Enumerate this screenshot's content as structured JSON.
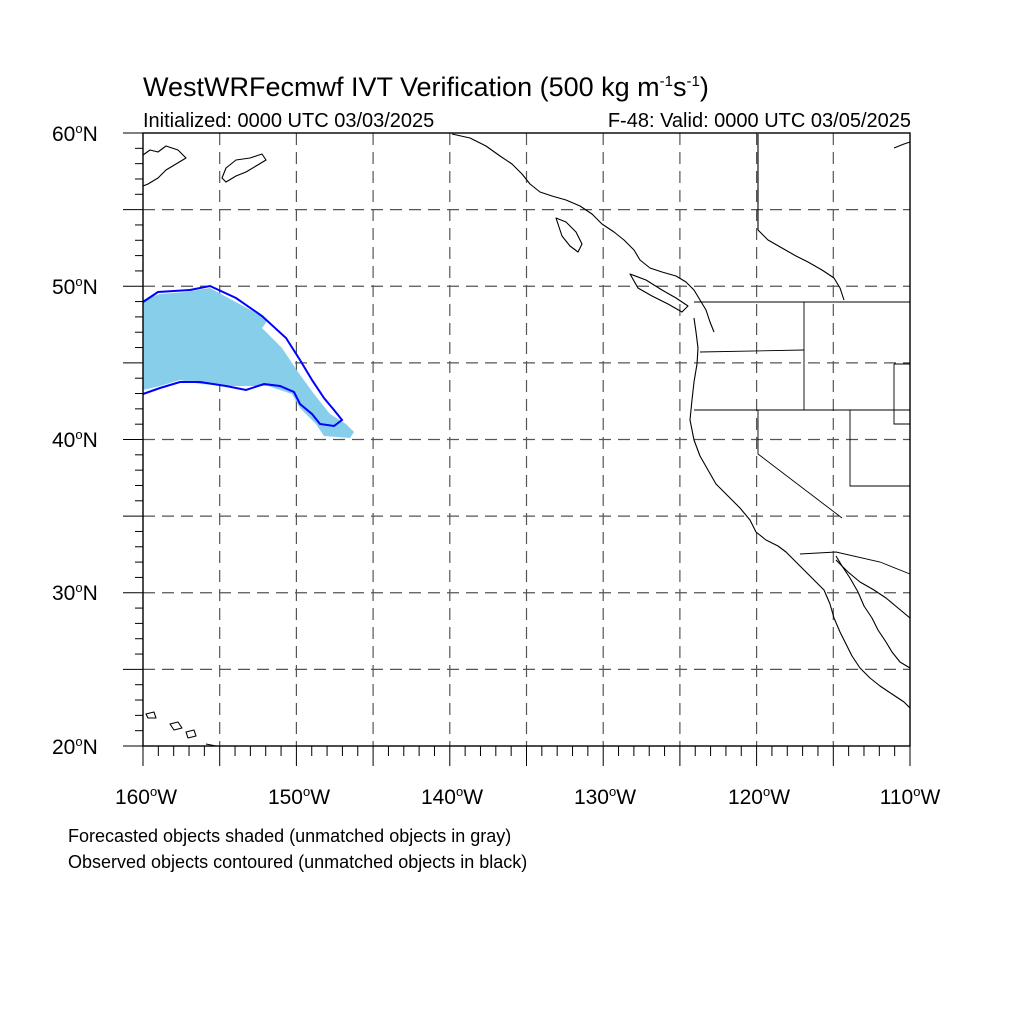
{
  "header": {
    "title_main": "WestWRFecmwf IVT Verification (500 kg m",
    "title_sup1": "-1",
    "title_mid": "s",
    "title_sup2": "-1",
    "title_end": ")",
    "initialized": "Initialized: 0000 UTC 03/03/2025",
    "valid": "F-48: Valid: 0000 UTC 03/05/2025"
  },
  "axes": {
    "lat_labels": [
      {
        "deg": "60",
        "sym": "o",
        "hem": "N"
      },
      {
        "deg": "50",
        "sym": "o",
        "hem": "N"
      },
      {
        "deg": "40",
        "sym": "o",
        "hem": "N"
      },
      {
        "deg": "30",
        "sym": "o",
        "hem": "N"
      },
      {
        "deg": "20",
        "sym": "o",
        "hem": "N"
      }
    ],
    "lon_labels": [
      {
        "deg": "160",
        "sym": "o",
        "hem": "W"
      },
      {
        "deg": "150",
        "sym": "o",
        "hem": "W"
      },
      {
        "deg": "140",
        "sym": "o",
        "hem": "W"
      },
      {
        "deg": "130",
        "sym": "o",
        "hem": "W"
      },
      {
        "deg": "120",
        "sym": "o",
        "hem": "W"
      },
      {
        "deg": "110",
        "sym": "o",
        "hem": "W"
      }
    ],
    "lon_range": [
      -160,
      -110
    ],
    "lat_range": [
      20,
      60
    ]
  },
  "legend": {
    "line1": "Forecasted objects shaded (unmatched objects in gray)",
    "line2": "Observed objects contoured (unmatched objects in black)"
  },
  "colors": {
    "forecast_fill": "#87ceeb",
    "forecast_unmatched": "#d3d3d3",
    "observed_contour": "#0000ff",
    "coast": "#000000",
    "grid": "#555555"
  }
}
